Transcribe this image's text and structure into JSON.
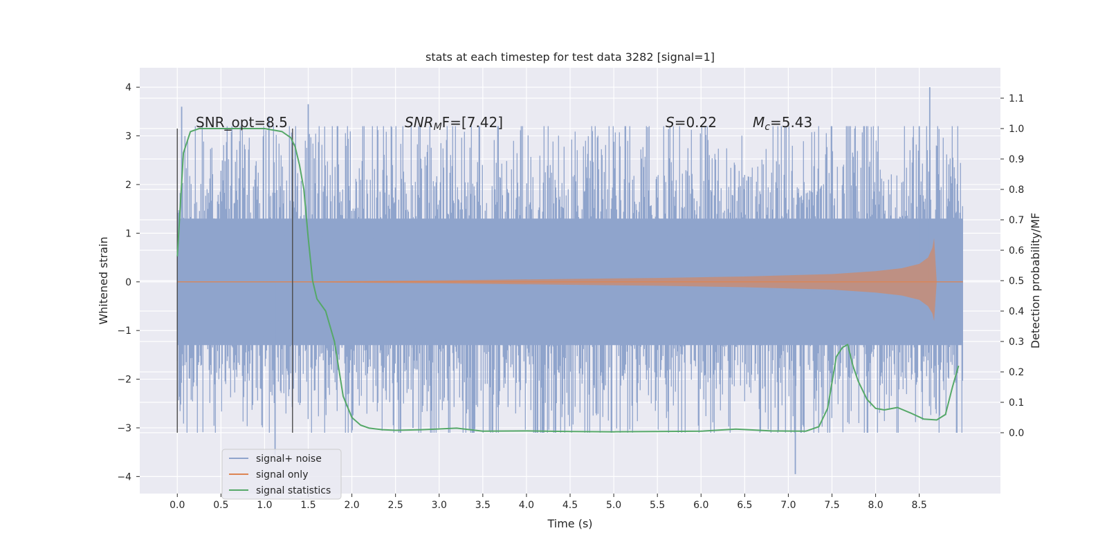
{
  "chart_data": {
    "type": "line",
    "title": "stats at each timestep for test data 3282 [signal=1]",
    "xlabel": "Time (s)",
    "ylabel_left": "Whitened strain",
    "ylabel_right": "Detection probability/MF",
    "xlim": [
      -0.43,
      9.43
    ],
    "ylim_left": [
      -4.35,
      4.4
    ],
    "ylim_right": [
      -0.2,
      1.2
    ],
    "x_ticks": [
      "0.0",
      "0.5",
      "1.0",
      "1.5",
      "2.0",
      "2.5",
      "3.0",
      "3.5",
      "4.0",
      "4.5",
      "5.0",
      "5.5",
      "6.0",
      "6.5",
      "7.0",
      "7.5",
      "8.0",
      "8.5"
    ],
    "y_ticks_left": [
      "4",
      "3",
      "2",
      "1",
      "0",
      "−1",
      "−2",
      "−3",
      "−4"
    ],
    "y_ticks_right": [
      "1.1",
      "1.0",
      "0.9",
      "0.8",
      "0.7",
      "0.6",
      "0.5",
      "0.4",
      "0.3",
      "0.2",
      "0.1",
      "0.0"
    ],
    "grid": true,
    "legend_position": "lower-left",
    "annotations": {
      "snr_opt": "SNR_opt=8.5",
      "snr_mf_sym": "SNR",
      "snr_mf_sub": "M",
      "snr_mf_rest": "F=[7.42]",
      "s_sym": "S",
      "s_rest": "=0.22",
      "mc_sym": "M",
      "mc_sub": "c",
      "mc_rest": "=5.43"
    },
    "vertical_lines": [
      0.0,
      1.32
    ],
    "series": [
      {
        "name": "signal+ noise",
        "color": "#8fa4cc",
        "x_range": [
          0.0,
          9.0
        ],
        "band_core": [
          -1.3,
          1.3
        ],
        "typical_envelope": [
          -2.3,
          2.3
        ],
        "notable_peaks": [
          {
            "x": 0.05,
            "y": 3.6
          },
          {
            "x": 1.05,
            "y": 3.4
          },
          {
            "x": 1.12,
            "y": -3.55
          },
          {
            "x": 1.5,
            "y": 3.65
          },
          {
            "x": 2.7,
            "y": -3.0
          },
          {
            "x": 4.2,
            "y": -2.95
          },
          {
            "x": 7.08,
            "y": -3.95
          },
          {
            "x": 8.5,
            "y": 3.2
          },
          {
            "x": 8.62,
            "y": 4.0
          }
        ]
      },
      {
        "name": "signal only",
        "color": "#dd8452",
        "x": [
          0.0,
          1.5,
          3.0,
          4.5,
          5.5,
          6.5,
          7.5,
          8.0,
          8.3,
          8.5,
          8.6,
          8.65,
          8.67,
          8.7,
          9.0
        ],
        "upper": [
          0.005,
          0.01,
          0.03,
          0.06,
          0.08,
          0.11,
          0.16,
          0.22,
          0.28,
          0.37,
          0.5,
          0.7,
          0.9,
          0.0,
          0.0
        ],
        "lower": [
          -0.005,
          -0.01,
          -0.03,
          -0.06,
          -0.08,
          -0.11,
          -0.16,
          -0.22,
          -0.28,
          -0.37,
          -0.5,
          -0.65,
          -0.8,
          0.0,
          0.0
        ]
      },
      {
        "name": "signal statistics",
        "color": "#55a868",
        "axis": "right",
        "x": [
          0.0,
          0.07,
          0.15,
          0.25,
          0.4,
          0.7,
          1.0,
          1.2,
          1.3,
          1.35,
          1.4,
          1.45,
          1.5,
          1.55,
          1.6,
          1.7,
          1.8,
          1.9,
          2.0,
          2.1,
          2.2,
          2.35,
          2.5,
          2.8,
          3.2,
          3.5,
          4.0,
          4.5,
          5.0,
          5.5,
          6.0,
          6.4,
          6.8,
          7.2,
          7.35,
          7.45,
          7.55,
          7.62,
          7.68,
          7.74,
          7.8,
          7.9,
          8.0,
          8.1,
          8.25,
          8.4,
          8.55,
          8.7,
          8.8,
          8.88,
          8.95
        ],
        "y": [
          0.58,
          0.92,
          0.99,
          1.0,
          1.0,
          1.0,
          1.0,
          0.99,
          0.97,
          0.94,
          0.88,
          0.8,
          0.64,
          0.5,
          0.44,
          0.4,
          0.3,
          0.12,
          0.05,
          0.025,
          0.015,
          0.01,
          0.008,
          0.01,
          0.015,
          0.005,
          0.006,
          0.004,
          0.003,
          0.004,
          0.005,
          0.012,
          0.006,
          0.005,
          0.02,
          0.08,
          0.25,
          0.28,
          0.29,
          0.22,
          0.17,
          0.11,
          0.08,
          0.075,
          0.083,
          0.065,
          0.045,
          0.042,
          0.06,
          0.15,
          0.22
        ]
      }
    ]
  }
}
